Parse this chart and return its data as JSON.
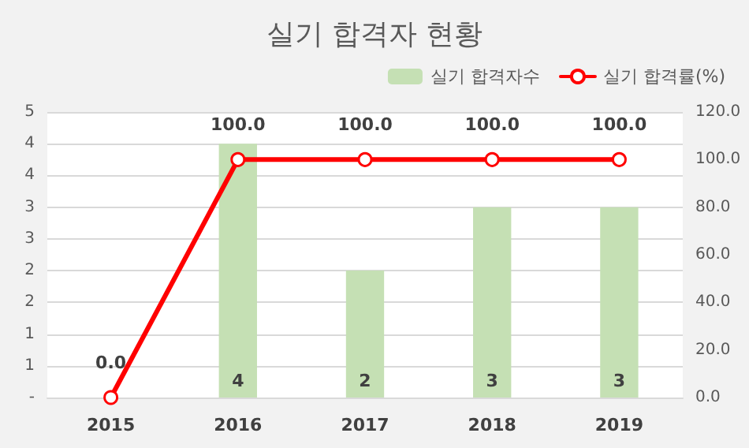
{
  "chart_data": {
    "type": "bar",
    "title": "실기 합격자 현황",
    "categories": [
      "2015",
      "2016",
      "2017",
      "2018",
      "2019"
    ],
    "series": [
      {
        "name": "실기 합격자수",
        "color": "#c5e0b4",
        "values": [
          null,
          4,
          2,
          3,
          3
        ],
        "value_labels": [
          null,
          "4",
          "2",
          "3",
          "3"
        ]
      },
      {
        "name": "실기 합격률(%)",
        "type": "line",
        "axis": "y2",
        "color": "#ff0000",
        "values": [
          0,
          100,
          100,
          100,
          100
        ],
        "value_labels": [
          "0.0",
          "100.0",
          "100.0",
          "100.0",
          "100.0"
        ]
      }
    ],
    "ylim": [
      0,
      4.5
    ],
    "yticks": [
      {
        "value": 0,
        "label": "-"
      },
      {
        "value": 0.5,
        "label": "1"
      },
      {
        "value": 1,
        "label": "1"
      },
      {
        "value": 1.5,
        "label": "2"
      },
      {
        "value": 2,
        "label": "2"
      },
      {
        "value": 2.5,
        "label": "3"
      },
      {
        "value": 3,
        "label": "3"
      },
      {
        "value": 3.5,
        "label": "4"
      },
      {
        "value": 4,
        "label": "4"
      },
      {
        "value": 4.5,
        "label": "5"
      }
    ],
    "y2lim": [
      0,
      120
    ],
    "y2ticks": [
      {
        "value": 0,
        "label": "0.0"
      },
      {
        "value": 20,
        "label": "20.0"
      },
      {
        "value": 40,
        "label": "40.0"
      },
      {
        "value": 60,
        "label": "60.0"
      },
      {
        "value": 80,
        "label": "80.0"
      },
      {
        "value": 100,
        "label": "100.0"
      },
      {
        "value": 120,
        "label": "120.0"
      }
    ],
    "grid": "y",
    "legend": "top right",
    "marker": "circle",
    "line_style": "solid"
  }
}
